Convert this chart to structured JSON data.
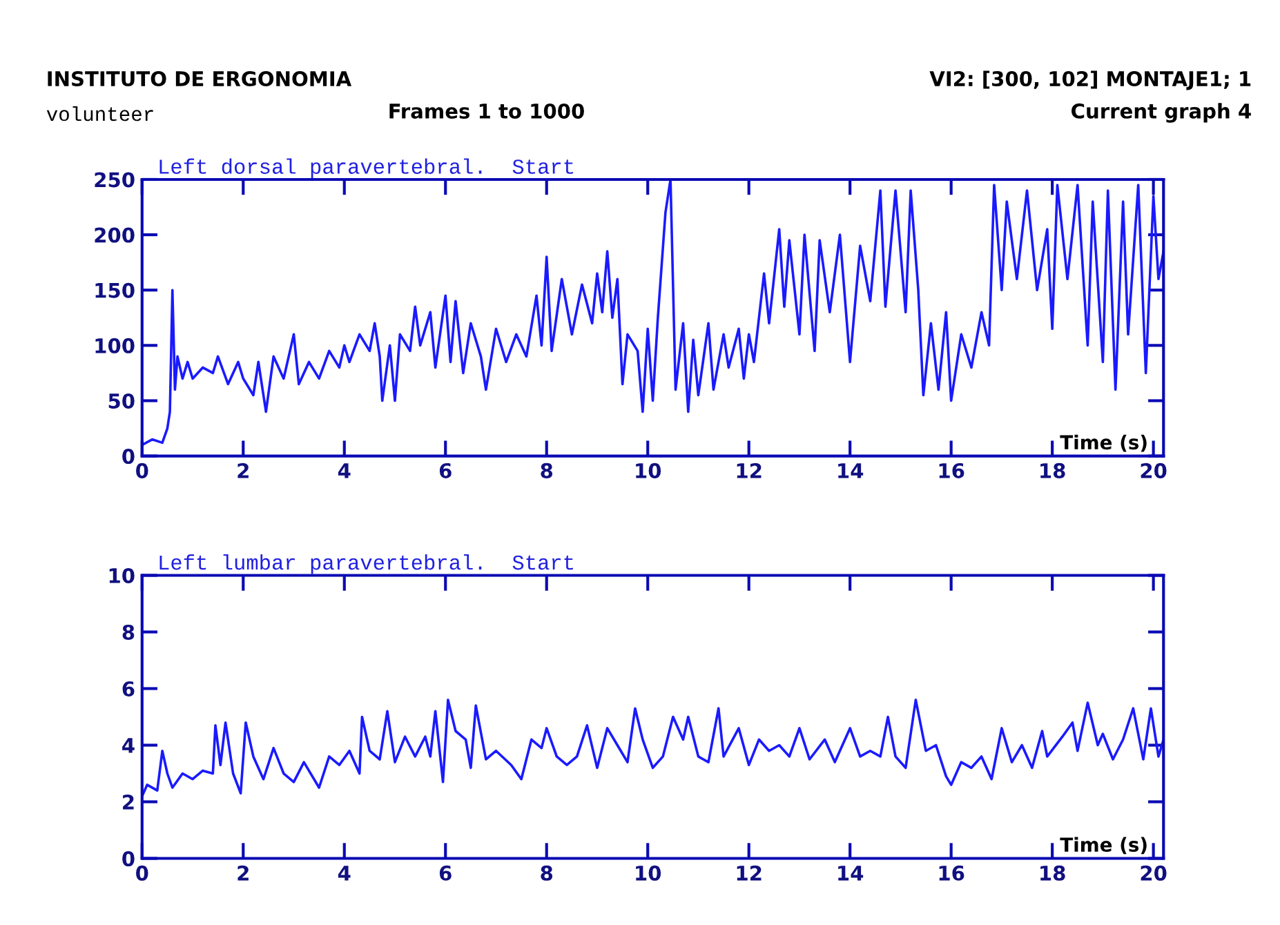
{
  "chart_data": [
    {
      "type": "line",
      "title": "Left dorsal paravertebral.  Start",
      "xlabel": "Time (s)",
      "annotations": [
        "INSTITUTO DE ERGONOMIA",
        "VI2: [300, 102] MONTAJE1; 1",
        "volunteer",
        "Frames 1 to 1000",
        "Current graph 4"
      ],
      "xlim": [
        0,
        20.2
      ],
      "xticks": [
        0,
        2,
        4,
        6,
        8,
        10,
        12,
        14,
        16,
        18,
        20
      ],
      "ylim": [
        0,
        250
      ],
      "yticks": [
        0,
        50,
        100,
        150,
        200,
        250
      ],
      "grid": false,
      "marker": "none",
      "line_style": "solid",
      "series": [
        {
          "color": "#1a1aff",
          "x": [
            0,
            0.2,
            0.4,
            0.5,
            0.55,
            0.6,
            0.65,
            0.7,
            0.8,
            0.9,
            1.0,
            1.2,
            1.4,
            1.5,
            1.7,
            1.9,
            2.0,
            2.2,
            2.3,
            2.45,
            2.6,
            2.8,
            3.0,
            3.1,
            3.3,
            3.5,
            3.7,
            3.9,
            4.0,
            4.1,
            4.3,
            4.5,
            4.6,
            4.7,
            4.75,
            4.9,
            5.0,
            5.1,
            5.3,
            5.4,
            5.5,
            5.7,
            5.8,
            6.0,
            6.1,
            6.2,
            6.35,
            6.5,
            6.7,
            6.8,
            7.0,
            7.2,
            7.4,
            7.6,
            7.8,
            7.9,
            8.0,
            8.1,
            8.3,
            8.5,
            8.7,
            8.9,
            9.0,
            9.1,
            9.2,
            9.3,
            9.4,
            9.5,
            9.6,
            9.8,
            9.9,
            10.0,
            10.1,
            10.2,
            10.35,
            10.45,
            10.55,
            10.7,
            10.8,
            10.9,
            11.0,
            11.2,
            11.3,
            11.5,
            11.6,
            11.8,
            11.9,
            12.0,
            12.1,
            12.3,
            12.4,
            12.6,
            12.7,
            12.8,
            13.0,
            13.1,
            13.3,
            13.4,
            13.6,
            13.8,
            14.0,
            14.2,
            14.4,
            14.6,
            14.7,
            14.9,
            15.1,
            15.2,
            15.35,
            15.45,
            15.6,
            15.75,
            15.9,
            16.0,
            16.2,
            16.4,
            16.6,
            16.75,
            16.85,
            17.0,
            17.1,
            17.3,
            17.5,
            17.7,
            17.9,
            18.0,
            18.1,
            18.3,
            18.5,
            18.7,
            18.8,
            19.0,
            19.1,
            19.25,
            19.4,
            19.5,
            19.7,
            19.85,
            20.0,
            20.1,
            20.2
          ],
          "values": [
            10,
            15,
            12,
            25,
            40,
            150,
            60,
            90,
            70,
            85,
            70,
            80,
            75,
            90,
            65,
            85,
            70,
            55,
            85,
            40,
            90,
            70,
            110,
            65,
            85,
            70,
            95,
            80,
            100,
            85,
            110,
            95,
            120,
            90,
            50,
            100,
            50,
            110,
            95,
            135,
            100,
            130,
            80,
            145,
            85,
            140,
            75,
            120,
            90,
            60,
            115,
            85,
            110,
            90,
            145,
            100,
            180,
            95,
            160,
            110,
            155,
            120,
            165,
            130,
            185,
            125,
            160,
            65,
            110,
            95,
            40,
            115,
            50,
            125,
            220,
            250,
            60,
            120,
            40,
            105,
            55,
            120,
            60,
            110,
            80,
            115,
            70,
            110,
            85,
            165,
            120,
            205,
            135,
            195,
            110,
            200,
            95,
            195,
            130,
            200,
            85,
            190,
            140,
            240,
            135,
            240,
            130,
            240,
            150,
            55,
            120,
            60,
            130,
            50,
            110,
            80,
            130,
            100,
            245,
            150,
            230,
            160,
            240,
            150,
            205,
            115,
            245,
            160,
            245,
            100,
            230,
            85,
            240,
            60,
            230,
            110,
            245,
            75,
            235,
            160,
            185
          ]
        }
      ]
    },
    {
      "type": "line",
      "title": "Left lumbar paravertebral.  Start",
      "xlabel": "Time (s)",
      "xlim": [
        0,
        20.2
      ],
      "xticks": [
        0,
        2,
        4,
        6,
        8,
        10,
        12,
        14,
        16,
        18,
        20
      ],
      "ylim": [
        0,
        10
      ],
      "yticks": [
        0,
        2,
        4,
        6,
        8,
        10
      ],
      "grid": false,
      "marker": "none",
      "line_style": "solid",
      "series": [
        {
          "color": "#1a1aff",
          "x": [
            0,
            0.1,
            0.3,
            0.4,
            0.5,
            0.6,
            0.8,
            1.0,
            1.2,
            1.4,
            1.45,
            1.55,
            1.65,
            1.8,
            1.95,
            2.05,
            2.2,
            2.4,
            2.6,
            2.8,
            3.0,
            3.2,
            3.5,
            3.7,
            3.9,
            4.1,
            4.3,
            4.35,
            4.5,
            4.7,
            4.85,
            5.0,
            5.2,
            5.4,
            5.6,
            5.7,
            5.8,
            5.95,
            6.05,
            6.2,
            6.4,
            6.5,
            6.6,
            6.8,
            7.0,
            7.3,
            7.5,
            7.7,
            7.9,
            8.0,
            8.2,
            8.4,
            8.6,
            8.8,
            9.0,
            9.2,
            9.4,
            9.6,
            9.75,
            9.9,
            10.1,
            10.3,
            10.5,
            10.7,
            10.8,
            11.0,
            11.2,
            11.4,
            11.5,
            11.8,
            12.0,
            12.2,
            12.4,
            12.6,
            12.8,
            13.0,
            13.2,
            13.5,
            13.7,
            14.0,
            14.2,
            14.4,
            14.6,
            14.75,
            14.9,
            15.1,
            15.3,
            15.5,
            15.7,
            15.9,
            16.0,
            16.2,
            16.4,
            16.6,
            16.8,
            17.0,
            17.2,
            17.4,
            17.6,
            17.8,
            17.9,
            18.2,
            18.4,
            18.5,
            18.7,
            18.9,
            19.0,
            19.2,
            19.4,
            19.6,
            19.8,
            19.95,
            20.1,
            20.2
          ],
          "values": [
            2.2,
            2.6,
            2.4,
            3.8,
            3.0,
            2.5,
            3.0,
            2.8,
            3.1,
            3.0,
            4.7,
            3.3,
            4.8,
            3.0,
            2.3,
            4.8,
            3.6,
            2.8,
            3.9,
            3.0,
            2.7,
            3.4,
            2.5,
            3.6,
            3.3,
            3.8,
            3.0,
            5.0,
            3.8,
            3.5,
            5.2,
            3.4,
            4.3,
            3.6,
            4.3,
            3.6,
            5.2,
            2.7,
            5.6,
            4.5,
            4.2,
            3.2,
            5.4,
            3.5,
            3.8,
            3.3,
            2.8,
            4.2,
            3.9,
            4.6,
            3.6,
            3.3,
            3.6,
            4.7,
            3.2,
            4.6,
            4.0,
            3.4,
            5.3,
            4.2,
            3.2,
            3.6,
            5.0,
            4.2,
            5.0,
            3.6,
            3.4,
            5.3,
            3.6,
            4.6,
            3.3,
            4.2,
            3.8,
            4.0,
            3.6,
            4.6,
            3.5,
            4.2,
            3.4,
            4.6,
            3.6,
            3.8,
            3.6,
            5.0,
            3.6,
            3.2,
            5.6,
            3.8,
            4.0,
            2.9,
            2.6,
            3.4,
            3.2,
            3.6,
            2.8,
            4.6,
            3.4,
            4.0,
            3.2,
            4.5,
            3.6,
            4.3,
            4.8,
            3.8,
            5.5,
            4.0,
            4.4,
            3.5,
            4.2,
            5.3,
            3.5,
            5.3,
            3.6,
            4.2
          ]
        }
      ]
    }
  ]
}
